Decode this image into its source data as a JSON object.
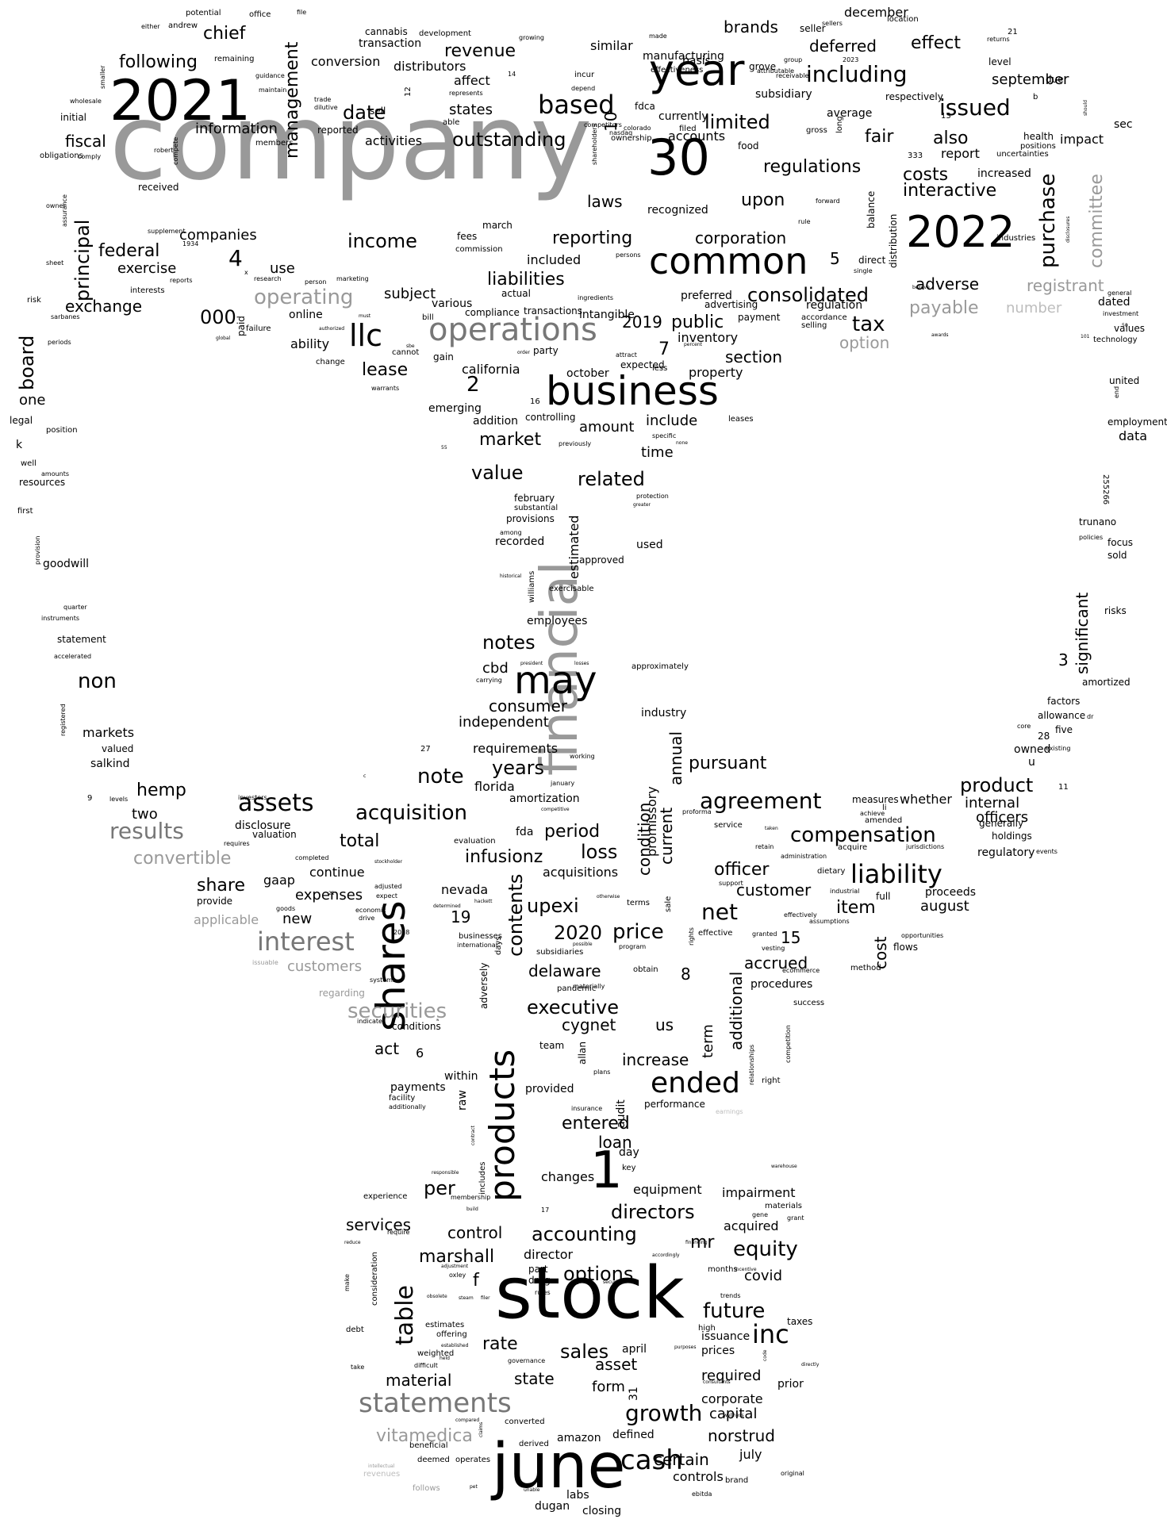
{
  "colors": {
    "background": "#ffffff",
    "dark": "#000000",
    "mid": "#999999",
    "muted": "#777777",
    "faint": "#bdbdbd"
  },
  "words": [
    "company",
    "financial",
    "stock",
    "june",
    "business",
    "shares",
    "products",
    "2021",
    "2022",
    "year",
    "30",
    "common",
    "operations",
    "may",
    "llc",
    "statements",
    "interest",
    "results",
    "assets",
    "liability",
    "ended",
    "cash",
    "inc",
    "1",
    "revenue",
    "based",
    "including",
    "issued",
    "regulations",
    "costs",
    "interactive",
    "purchase",
    "committee",
    "income",
    "corporation",
    "reporting",
    "liabilities",
    "consolidated",
    "tax",
    "option",
    "payable",
    "registrant",
    "adverse",
    "subject",
    "public",
    "section",
    "lease",
    "board",
    "principal",
    "exchange",
    "federal",
    "management",
    "chief",
    "following",
    "date",
    "information",
    "fiscal",
    "outstanding",
    "limited",
    "upon",
    "fair",
    "also",
    "effect",
    "brands",
    "deferred",
    "september",
    "december",
    "market",
    "value",
    "related",
    "amount",
    "include",
    "time",
    "notes",
    "consumer",
    "independent",
    "requirements",
    "years",
    "note",
    "acquisition",
    "agreement",
    "compensation",
    "product",
    "internal",
    "officers",
    "pursuant",
    "total",
    "loss",
    "period",
    "condition",
    "contents",
    "upexi",
    "price",
    "2020",
    "delaware",
    "executive",
    "cygnet",
    "us",
    "increase",
    "growth",
    "state",
    "material",
    "accounting",
    "directors",
    "options",
    "equity",
    "future",
    "sales",
    "table",
    "services",
    "control",
    "marshall",
    "director",
    "vitamedica",
    "certain",
    "norstrud",
    "capital",
    "corporate",
    "required",
    "officer",
    "customer",
    "net",
    "item",
    "cost",
    "accrued",
    "additional",
    "term",
    "hemp",
    "two",
    "convertible",
    "share",
    "expenses",
    "securities",
    "customers",
    "act",
    "applicable",
    "non",
    "markets",
    "entered",
    "loan",
    "per",
    "rate",
    "asset",
    "form",
    "controls",
    "july",
    "closing",
    "labs",
    "dugan",
    "amazon",
    "defined",
    "april",
    "issuance",
    "prices",
    "covid",
    "mr",
    "equipment",
    "impairment",
    "acquired",
    "changes",
    "day",
    "audit",
    "performance",
    "provided",
    "within",
    "payments",
    "raw",
    "current",
    "annual",
    "promissory",
    "significant",
    "amortized",
    "factors",
    "cbd",
    "employees",
    "estimated",
    "used",
    "recorded",
    "february",
    "approved",
    "industry",
    "infusionz",
    "acquisitions",
    "nevada",
    "amortization",
    "florida",
    "fda",
    "2019",
    "preferred",
    "inventory",
    "property",
    "october",
    "california",
    "emerging",
    "addition",
    "controlling",
    "expected",
    "gaap",
    "disclosure",
    "continue",
    "valuation",
    "exercise",
    "companies",
    "use",
    "federal",
    "000",
    "operating",
    "ability",
    "online",
    "actual",
    "various",
    "compliance",
    "included",
    "transactions",
    "intangible",
    "advertising",
    "payment",
    "regulation",
    "accordance",
    "selling",
    "number",
    "dated",
    "values",
    "technology",
    "investment",
    "general",
    "health",
    "positions",
    "impact",
    "sec",
    "report",
    "increased",
    "uncertainties",
    "industries",
    "direct",
    "single",
    "balance",
    "distribution",
    "respectively",
    "average",
    "gross",
    "long",
    "forward",
    "rule",
    "food",
    "accounts",
    "currently",
    "fdca",
    "similar",
    "manufacturing",
    "effectiveness",
    "basis",
    "seller",
    "sellers",
    "location",
    "level",
    "due",
    "returns",
    "21",
    "grove",
    "group",
    "attributable",
    "receivable",
    "2023",
    "subsidiary",
    "distributors",
    "affect",
    "conversion",
    "transaction",
    "cannabis",
    "development",
    "growing",
    "made",
    "incur",
    "depend",
    "ownership",
    "shareholders",
    "colorado",
    "competitors",
    "nasdaq",
    "filed",
    "trade",
    "dilutive",
    "reported",
    "activities",
    "states",
    "able",
    "represents",
    "sell",
    "14",
    "12",
    "remaining",
    "guidance",
    "maintain",
    "smaller",
    "potential",
    "andrew",
    "either",
    "office",
    "file",
    "wholesale",
    "initial",
    "obligations",
    "comply",
    "members",
    "compete",
    "robert",
    "received",
    "supplement",
    "1934",
    "march",
    "fees",
    "commission",
    "owner",
    "assurance",
    "sheet",
    "interests",
    "reports",
    "sarbanes",
    "risk",
    "periods",
    "legal",
    "one",
    "position",
    "k",
    "well",
    "resources",
    "amounts",
    "first",
    "provision",
    "goodwill",
    "quarter",
    "instruments",
    "statement",
    "accelerated",
    "registered",
    "valued",
    "salkind",
    "levels",
    "investors",
    "requires",
    "completed",
    "stockholder",
    "adjusted",
    "expect",
    "economic",
    "drive",
    "goods",
    "provide",
    "new",
    "regarding",
    "systems",
    "indicate",
    "conditions",
    "2018",
    "issuable",
    "businesses",
    "international",
    "subsidiaries",
    "pandemic",
    "materially",
    "adversely",
    "team",
    "allan",
    "plans",
    "insurance",
    "facility",
    "additionally",
    "earnings",
    "right",
    "relationships",
    "success",
    "competition",
    "procedures",
    "method",
    "flows",
    "proceeds",
    "august",
    "dietary",
    "industrial",
    "full",
    "acquire",
    "administration",
    "support",
    "granted",
    "vesting",
    "ecommerce",
    "effectively",
    "assumptions",
    "opportunities",
    "generally",
    "regulatory",
    "holdings",
    "events",
    "amended",
    "service",
    "whether",
    "measures",
    "achieve",
    "retain",
    "jurisdictions",
    "proforma",
    "11",
    "owned",
    "five",
    "existing",
    "28",
    "core",
    "allowance",
    "dr",
    "united",
    "end",
    "employment",
    "data",
    "255266",
    "trunano",
    "policies",
    "focus",
    "sold",
    "risks",
    "6",
    "7",
    "2",
    "3",
    "4",
    "5",
    "8",
    "10",
    "13",
    "15",
    "16",
    "17",
    "19",
    "22",
    "27",
    "31",
    "333",
    "50",
    "101",
    "55",
    "9",
    "b",
    "u",
    "f",
    "c",
    "w",
    "x",
    "li",
    "warrants",
    "cannot",
    "order",
    "party",
    "gain",
    "percent",
    "attract",
    "less",
    "leases",
    "specific",
    "none",
    "previously",
    "greater",
    "protection",
    "substantial",
    "provisions",
    "among",
    "historical",
    "williams",
    "exercisable",
    "approximately",
    "president",
    "losses",
    "carrying",
    "working",
    "january",
    "competitive",
    "evaluation",
    "hackett",
    "determined",
    "days",
    "possible",
    "otherwise",
    "program",
    "terms",
    "sale",
    "rights",
    "effective",
    "obtain",
    "key",
    "contract",
    "includes",
    "responsible",
    "membership",
    "build",
    "experience",
    "require",
    "reduce",
    "consideration",
    "make",
    "debt",
    "adjustment",
    "oxley",
    "obsolete",
    "steam",
    "filer",
    "part",
    "drug",
    "rules",
    "security",
    "accordingly",
    "financing",
    "months",
    "incentive",
    "trends",
    "gene",
    "grant",
    "materials",
    "high",
    "purposes",
    "code",
    "directly",
    "prior",
    "taxes",
    "consultants",
    "wellness",
    "brand",
    "original",
    "ebitda",
    "pet",
    "unable",
    "follows",
    "revenues",
    "intellectual",
    "deemed",
    "operates",
    "beneficial",
    "converted",
    "derived",
    "claims",
    "compared",
    "take",
    "offering",
    "established",
    "weighted",
    "difficult",
    "held",
    "governance",
    "estimates",
    "paid",
    "failure",
    "authorized",
    "global",
    "change",
    "research",
    "person",
    "marketing",
    "bill",
    "must",
    "sbe",
    "persons",
    "ingredients",
    "forward",
    "gross",
    "recognized",
    "laws",
    "12",
    "debt",
    "5",
    "flows",
    "warehouse",
    "taken",
    "either",
    "remaining",
    "2023",
    "believe",
    "awards",
    "disclosures",
    "should"
  ]
}
